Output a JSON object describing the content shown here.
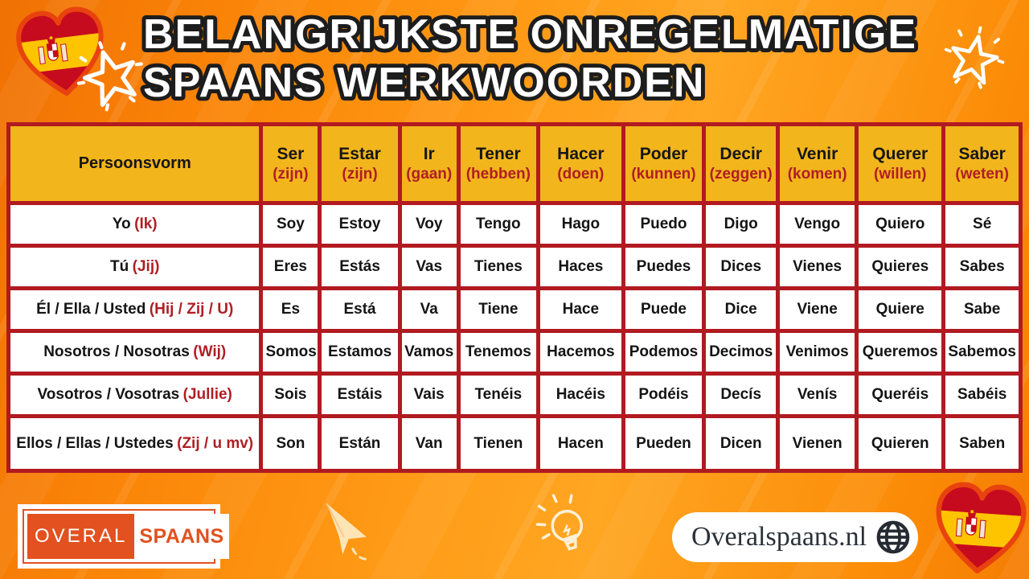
{
  "title": {
    "line1": "BELANGRIJKSTE ONREGELMATIGE",
    "line2": "SPAANS WERKWOORDEN"
  },
  "table": {
    "person_header": "Persoonsvorm",
    "verbs": [
      {
        "name": "Ser",
        "translation": "(zijn)"
      },
      {
        "name": "Estar",
        "translation": "(zijn)"
      },
      {
        "name": "Ir",
        "translation": "(gaan)"
      },
      {
        "name": "Tener",
        "translation": "(hebben)"
      },
      {
        "name": "Hacer",
        "translation": "(doen)"
      },
      {
        "name": "Poder",
        "translation": "(kunnen)"
      },
      {
        "name": "Decir",
        "translation": "(zeggen)"
      },
      {
        "name": "Venir",
        "translation": "(komen)"
      },
      {
        "name": "Querer",
        "translation": "(willen)"
      },
      {
        "name": "Saber",
        "translation": "(weten)"
      }
    ],
    "rows": [
      {
        "person": "Yo",
        "translation": "(Ik)",
        "forms": [
          "Soy",
          "Estoy",
          "Voy",
          "Tengo",
          "Hago",
          "Puedo",
          "Digo",
          "Vengo",
          "Quiero",
          "Sé"
        ]
      },
      {
        "person": "Tú",
        "translation": "(Jij)",
        "forms": [
          "Eres",
          "Estás",
          "Vas",
          "Tienes",
          "Haces",
          "Puedes",
          "Dices",
          "Vienes",
          "Quieres",
          "Sabes"
        ]
      },
      {
        "person": "Él / Ella / Usted",
        "translation": "(Hij / Zij / U)",
        "forms": [
          "Es",
          "Está",
          "Va",
          "Tiene",
          "Hace",
          "Puede",
          "Dice",
          "Viene",
          "Quiere",
          "Sabe"
        ]
      },
      {
        "person": "Nosotros / Nosotras",
        "translation": "(Wij)",
        "forms": [
          "Somos",
          "Estamos",
          "Vamos",
          "Tenemos",
          "Hacemos",
          "Podemos",
          "Decimos",
          "Venimos",
          "Queremos",
          "Sabemos"
        ]
      },
      {
        "person": "Vosotros / Vosotras",
        "translation": "(Jullie)",
        "forms": [
          "Sois",
          "Estáis",
          "Vais",
          "Tenéis",
          "Hacéis",
          "Podéis",
          "Decís",
          "Venís",
          "Queréis",
          "Sabéis"
        ]
      },
      {
        "person": "Ellos / Ellas / Ustedes",
        "translation": "(Zij / u mv)",
        "forms": [
          "Son",
          "Están",
          "Van",
          "Tienen",
          "Hacen",
          "Pueden",
          "Dicen",
          "Vienen",
          "Quieren",
          "Saben"
        ]
      }
    ]
  },
  "footer": {
    "logo_part1": "OVERAL",
    "logo_part2": "SPAANS",
    "website": "Overalspaans.nl"
  },
  "icons": {
    "heart_top_left": "spain-flag-heart",
    "star_top_left": "star-outline",
    "star_top_right": "star-outline",
    "paper_plane": "paper-plane",
    "lightbulb": "lightbulb",
    "globe": "globe",
    "heart_bottom_right": "spain-flag-heart"
  },
  "colors": {
    "background_orange": "#FF9312",
    "table_border_red": "#B11A21",
    "header_gold": "#F2B51C",
    "accent_red": "#B01E24",
    "logo_orange": "#E2511F",
    "flag_red": "#C60B1E",
    "flag_yellow": "#FFC400",
    "cream": "#FFE9C4"
  }
}
